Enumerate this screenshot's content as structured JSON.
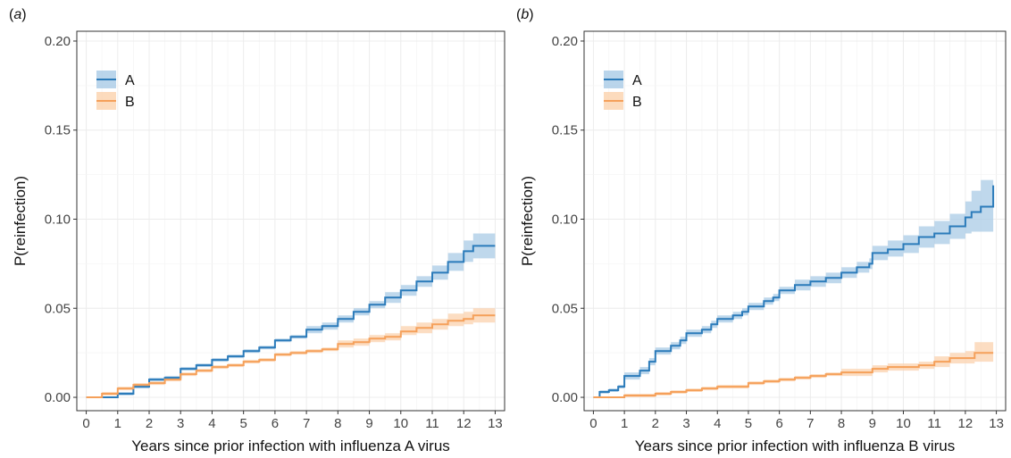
{
  "chart_data": [
    {
      "type": "line",
      "panel_label": "a",
      "xlabel": "Years since prior infection with influenza A virus",
      "ylabel": "P(reinfection)",
      "xlim": [
        -0.3,
        13.3
      ],
      "ylim": [
        -0.0075,
        0.2055
      ],
      "x_ticks": [
        0,
        1,
        2,
        3,
        4,
        5,
        6,
        7,
        8,
        9,
        10,
        11,
        12,
        13
      ],
      "y_ticks": [
        0.0,
        0.05,
        0.1,
        0.15,
        0.2
      ],
      "y_tick_labels": [
        "0.00",
        "0.05",
        "0.10",
        "0.15",
        "0.20"
      ],
      "grid": true,
      "legend_position": "top-left",
      "series": [
        {
          "name": "A",
          "color": "#2b7bba",
          "fill": "#a9cbe6",
          "step": true,
          "x": [
            0,
            0.9,
            1.0,
            1.5,
            2.0,
            2.5,
            3.0,
            3.5,
            4.0,
            4.5,
            5.0,
            5.5,
            6.0,
            6.5,
            7.0,
            7.5,
            8.0,
            8.5,
            9.0,
            9.5,
            10.0,
            10.5,
            11.0,
            11.5,
            12.0,
            12.3,
            13.0
          ],
          "y": [
            0,
            0,
            0.002,
            0.006,
            0.01,
            0.011,
            0.016,
            0.018,
            0.021,
            0.023,
            0.026,
            0.028,
            0.032,
            0.034,
            0.038,
            0.04,
            0.044,
            0.048,
            0.052,
            0.056,
            0.06,
            0.065,
            0.07,
            0.076,
            0.082,
            0.085,
            0.085
          ],
          "lower": [
            0,
            0,
            0.001,
            0.005,
            0.009,
            0.01,
            0.015,
            0.017,
            0.02,
            0.022,
            0.025,
            0.027,
            0.031,
            0.033,
            0.036,
            0.038,
            0.042,
            0.046,
            0.05,
            0.053,
            0.057,
            0.062,
            0.066,
            0.071,
            0.076,
            0.078,
            0.078
          ],
          "upper": [
            0,
            0,
            0.003,
            0.007,
            0.011,
            0.012,
            0.017,
            0.019,
            0.022,
            0.024,
            0.027,
            0.029,
            0.033,
            0.035,
            0.04,
            0.042,
            0.046,
            0.05,
            0.054,
            0.059,
            0.063,
            0.068,
            0.074,
            0.081,
            0.088,
            0.092,
            0.092
          ]
        },
        {
          "name": "B",
          "color": "#f5a05a",
          "fill": "#fbd2ad",
          "step": true,
          "x": [
            0,
            0.5,
            1.0,
            1.5,
            2.0,
            2.5,
            3.0,
            3.5,
            4.0,
            4.5,
            5.0,
            5.5,
            6.0,
            6.5,
            7.0,
            7.5,
            8.0,
            8.5,
            9.0,
            9.5,
            10.0,
            10.5,
            11.0,
            11.5,
            12.0,
            12.3,
            13.0
          ],
          "y": [
            0,
            0.002,
            0.005,
            0.007,
            0.008,
            0.01,
            0.013,
            0.015,
            0.017,
            0.018,
            0.02,
            0.021,
            0.024,
            0.025,
            0.026,
            0.027,
            0.03,
            0.031,
            0.033,
            0.034,
            0.037,
            0.039,
            0.041,
            0.043,
            0.044,
            0.046,
            0.046
          ],
          "lower": [
            0,
            0.001,
            0.004,
            0.006,
            0.007,
            0.009,
            0.012,
            0.014,
            0.016,
            0.017,
            0.019,
            0.02,
            0.023,
            0.024,
            0.025,
            0.026,
            0.028,
            0.029,
            0.031,
            0.032,
            0.035,
            0.036,
            0.038,
            0.04,
            0.041,
            0.042,
            0.042
          ],
          "upper": [
            0,
            0.003,
            0.006,
            0.008,
            0.009,
            0.011,
            0.014,
            0.016,
            0.018,
            0.019,
            0.021,
            0.022,
            0.025,
            0.026,
            0.027,
            0.028,
            0.032,
            0.033,
            0.035,
            0.036,
            0.04,
            0.042,
            0.044,
            0.047,
            0.048,
            0.05,
            0.05
          ]
        }
      ]
    },
    {
      "type": "line",
      "panel_label": "b",
      "xlabel": "Years since prior infection with influenza B virus",
      "ylabel": "P(reinfection)",
      "xlim": [
        -0.3,
        13.3
      ],
      "ylim": [
        -0.0075,
        0.2055
      ],
      "x_ticks": [
        0,
        1,
        2,
        3,
        4,
        5,
        6,
        7,
        8,
        9,
        10,
        11,
        12,
        13
      ],
      "y_ticks": [
        0.0,
        0.05,
        0.1,
        0.15,
        0.2
      ],
      "y_tick_labels": [
        "0.00",
        "0.05",
        "0.10",
        "0.15",
        "0.20"
      ],
      "grid": true,
      "legend_position": "top-left",
      "series": [
        {
          "name": "A",
          "color": "#2b7bba",
          "fill": "#a9cbe6",
          "step": true,
          "x": [
            0,
            0.2,
            0.5,
            0.8,
            1.0,
            1.5,
            1.8,
            2.0,
            2.5,
            2.8,
            3.0,
            3.5,
            3.8,
            4.0,
            4.5,
            4.8,
            5.0,
            5.5,
            5.8,
            6.0,
            6.5,
            7.0,
            7.5,
            8.0,
            8.5,
            8.9,
            9.0,
            9.5,
            10.0,
            10.5,
            11.0,
            11.5,
            12.0,
            12.2,
            12.5,
            12.9
          ],
          "y": [
            0,
            0.003,
            0.004,
            0.006,
            0.012,
            0.015,
            0.02,
            0.026,
            0.029,
            0.032,
            0.036,
            0.038,
            0.041,
            0.044,
            0.046,
            0.048,
            0.051,
            0.054,
            0.056,
            0.06,
            0.063,
            0.065,
            0.067,
            0.07,
            0.073,
            0.075,
            0.081,
            0.083,
            0.086,
            0.09,
            0.092,
            0.096,
            0.101,
            0.104,
            0.107,
            0.119
          ],
          "lower": [
            0,
            0.002,
            0.003,
            0.005,
            0.01,
            0.013,
            0.018,
            0.024,
            0.027,
            0.03,
            0.034,
            0.036,
            0.039,
            0.042,
            0.044,
            0.046,
            0.049,
            0.052,
            0.054,
            0.058,
            0.06,
            0.062,
            0.064,
            0.067,
            0.07,
            0.072,
            0.077,
            0.079,
            0.081,
            0.084,
            0.086,
            0.089,
            0.092,
            0.093,
            0.093,
            0.093
          ],
          "upper": [
            0,
            0.004,
            0.005,
            0.007,
            0.014,
            0.017,
            0.022,
            0.028,
            0.031,
            0.034,
            0.038,
            0.04,
            0.043,
            0.046,
            0.048,
            0.05,
            0.053,
            0.056,
            0.058,
            0.062,
            0.066,
            0.068,
            0.07,
            0.073,
            0.076,
            0.078,
            0.085,
            0.088,
            0.091,
            0.096,
            0.099,
            0.103,
            0.11,
            0.116,
            0.122,
            0.144
          ]
        },
        {
          "name": "B",
          "color": "#f5a05a",
          "fill": "#fbd2ad",
          "step": true,
          "x": [
            0,
            1.0,
            2.0,
            2.5,
            3.0,
            3.5,
            4.0,
            4.5,
            5.0,
            5.5,
            6.0,
            6.5,
            7.0,
            7.5,
            8.0,
            8.5,
            9.0,
            9.5,
            10.0,
            10.5,
            11.0,
            11.5,
            12.0,
            12.3,
            12.9
          ],
          "y": [
            0,
            0.001,
            0.002,
            0.003,
            0.004,
            0.005,
            0.006,
            0.006,
            0.008,
            0.009,
            0.01,
            0.011,
            0.012,
            0.013,
            0.014,
            0.014,
            0.016,
            0.017,
            0.017,
            0.018,
            0.02,
            0.022,
            0.022,
            0.025,
            0.025
          ],
          "lower": [
            0,
            0.0,
            0.001,
            0.002,
            0.003,
            0.004,
            0.005,
            0.005,
            0.007,
            0.008,
            0.009,
            0.01,
            0.011,
            0.012,
            0.012,
            0.012,
            0.014,
            0.015,
            0.015,
            0.016,
            0.017,
            0.019,
            0.019,
            0.02,
            0.02
          ],
          "upper": [
            0,
            0.002,
            0.003,
            0.004,
            0.005,
            0.006,
            0.007,
            0.007,
            0.009,
            0.01,
            0.011,
            0.012,
            0.013,
            0.014,
            0.016,
            0.016,
            0.018,
            0.019,
            0.019,
            0.02,
            0.023,
            0.025,
            0.026,
            0.031,
            0.032
          ]
        }
      ]
    }
  ]
}
